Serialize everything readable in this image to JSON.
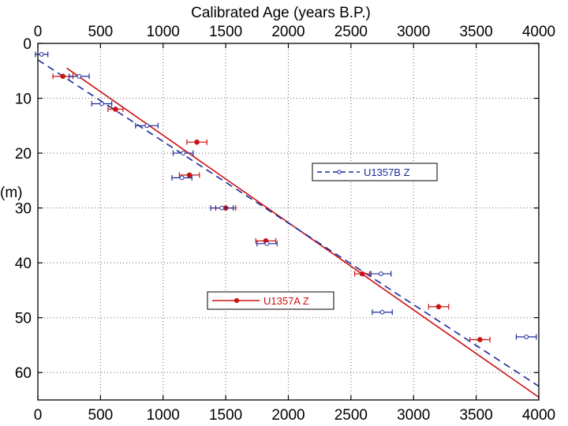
{
  "chart_data": {
    "type": "scatter",
    "title": "",
    "xlabel": "Calibrated Age (years B.P.)",
    "ylabel": "(m)",
    "xlim": [
      0,
      4000
    ],
    "ylim": [
      0,
      65
    ],
    "y_inverted": true,
    "x_ticks": [
      0,
      500,
      1000,
      1500,
      2000,
      2500,
      3000,
      3500,
      4000
    ],
    "y_ticks": [
      0,
      10,
      20,
      30,
      40,
      50,
      60
    ],
    "x_tick_labels": [
      "0",
      "500",
      "1000",
      "1500",
      "2000",
      "2500",
      "3000",
      "3500",
      "4000"
    ],
    "y_tick_labels": [
      "0",
      "10",
      "20",
      "30",
      "40",
      "50",
      "60"
    ],
    "x_axis_position": "top and bottom",
    "grid": "dotted",
    "colors": {
      "U1357A": "#cc1111",
      "U1357B": "#1a2a9a"
    },
    "series": [
      {
        "name": "U1357A Z",
        "marker": "filled-circle",
        "line_style": "solid",
        "legend_position": "lower-left",
        "points": [
          {
            "x": 200,
            "y": 6,
            "xerr": 80
          },
          {
            "x": 620,
            "y": 12,
            "xerr": 60
          },
          {
            "x": 1270,
            "y": 18,
            "xerr": 80
          },
          {
            "x": 1210,
            "y": 24,
            "xerr": 80
          },
          {
            "x": 1500,
            "y": 30,
            "xerr": 80
          },
          {
            "x": 1820,
            "y": 36,
            "xerr": 80
          },
          {
            "x": 2590,
            "y": 42,
            "xerr": 60
          },
          {
            "x": 3200,
            "y": 48,
            "xerr": 80
          },
          {
            "x": 3530,
            "y": 54,
            "xerr": 80
          }
        ],
        "fit": [
          [
            230,
            4.5
          ],
          [
            4000,
            64.5
          ]
        ]
      },
      {
        "name": "U1357B Z",
        "marker": "open-circle",
        "line_style": "dashed",
        "legend_position": "right-middle",
        "points": [
          {
            "x": 30,
            "y": 2,
            "xerr": 50
          },
          {
            "x": 330,
            "y": 6,
            "xerr": 80
          },
          {
            "x": 510,
            "y": 11,
            "xerr": 80
          },
          {
            "x": 870,
            "y": 15,
            "xerr": 90
          },
          {
            "x": 1160,
            "y": 20,
            "xerr": 80
          },
          {
            "x": 1150,
            "y": 24.5,
            "xerr": 80
          },
          {
            "x": 1470,
            "y": 30,
            "xerr": 90
          },
          {
            "x": 1830,
            "y": 36.5,
            "xerr": 80
          },
          {
            "x": 2740,
            "y": 42,
            "xerr": 80
          },
          {
            "x": 2750,
            "y": 49,
            "xerr": 80
          },
          {
            "x": 3900,
            "y": 53.5,
            "xerr": 80
          }
        ],
        "fit": [
          [
            0,
            3
          ],
          [
            4000,
            62.5
          ]
        ]
      }
    ]
  }
}
